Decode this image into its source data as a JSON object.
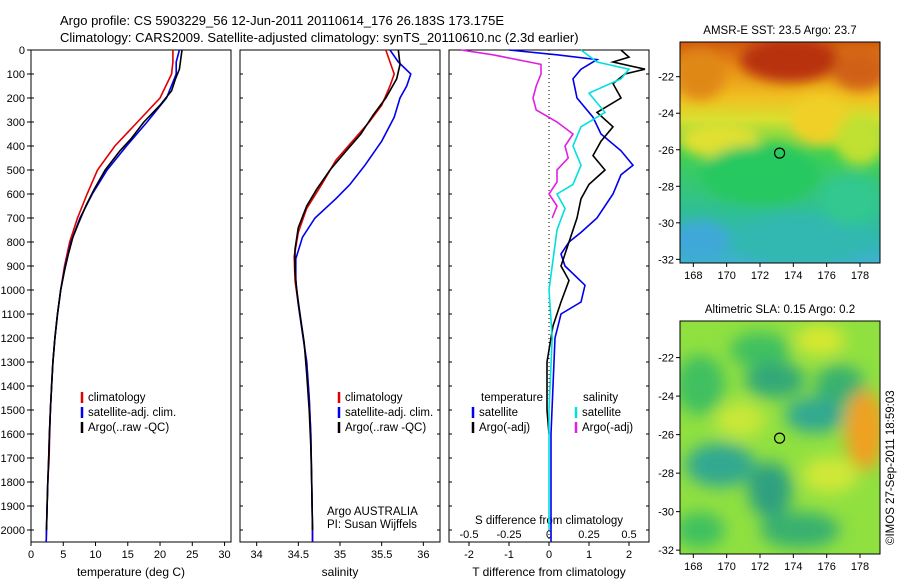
{
  "header": {
    "line1": "Argo profile: CS 5903229_56 12-Jun-2011 20110614_176 26.183S 173.175E",
    "line2": "Climatology: CARS2009. Satellite-adjusted climatology: synTS_20110610.nc (2.3d earlier)"
  },
  "footer": {
    "credit": "©IMOS 27-Sep-2011 18:59:03"
  },
  "colors": {
    "climatology": "#e00000",
    "satellite": "#0000ee",
    "argo": "#000000",
    "salinity_satellite": "#00e0e0",
    "salinity_argo": "#e020e0"
  },
  "chart_data": [
    {
      "id": "temperature",
      "type": "line",
      "xlabel": "temperature (deg C)",
      "ylabel": "",
      "xlim": [
        0,
        31
      ],
      "ylim": [
        2050,
        0
      ],
      "xticks": [
        0,
        5,
        10,
        15,
        20,
        25,
        30
      ],
      "yticks": [
        0,
        100,
        200,
        300,
        400,
        500,
        600,
        700,
        800,
        900,
        1000,
        1100,
        1200,
        1300,
        1400,
        1500,
        1600,
        1700,
        1800,
        1900,
        2000
      ],
      "legend": {
        "entries": [
          "climatology",
          "satellite-adj. clim.",
          "Argo(..raw -QC)"
        ],
        "placement": "lower-center"
      },
      "series": [
        {
          "name": "climatology",
          "color_key": "climatology",
          "points": [
            [
              22,
              0
            ],
            [
              22,
              50
            ],
            [
              21.8,
              100
            ],
            [
              20,
              200
            ],
            [
              16.5,
              300
            ],
            [
              13,
              400
            ],
            [
              10.3,
              500
            ],
            [
              8.7,
              600
            ],
            [
              7.2,
              700
            ],
            [
              6,
              800
            ],
            [
              5.2,
              900
            ],
            [
              4.6,
              1000
            ],
            [
              4.1,
              1100
            ],
            [
              3.7,
              1200
            ],
            [
              3.4,
              1300
            ],
            [
              3.2,
              1400
            ],
            [
              3,
              1500
            ],
            [
              2.9,
              1600
            ],
            [
              2.8,
              1700
            ],
            [
              2.6,
              1800
            ],
            [
              2.5,
              1900
            ],
            [
              2.4,
              2000
            ],
            [
              2.35,
              2050
            ]
          ]
        },
        {
          "name": "satellite-adj. clim.",
          "color_key": "satellite",
          "points": [
            [
              23,
              0
            ],
            [
              22.5,
              50
            ],
            [
              22.5,
              100
            ],
            [
              21,
              200
            ],
            [
              18,
              300
            ],
            [
              14.8,
              400
            ],
            [
              11.8,
              500
            ],
            [
              9.5,
              600
            ],
            [
              7.6,
              700
            ],
            [
              6.2,
              800
            ],
            [
              5.3,
              900
            ],
            [
              4.6,
              1000
            ],
            [
              4.1,
              1100
            ],
            [
              3.7,
              1200
            ],
            [
              3.4,
              1300
            ],
            [
              3.2,
              1400
            ],
            [
              3,
              1500
            ],
            [
              2.85,
              1600
            ],
            [
              2.75,
              1700
            ],
            [
              2.6,
              1800
            ],
            [
              2.5,
              1900
            ],
            [
              2.4,
              2000
            ],
            [
              2.35,
              2050
            ]
          ]
        },
        {
          "name": "Argo(..raw -QC)",
          "color_key": "argo",
          "points": [
            [
              23.4,
              0
            ],
            [
              23.2,
              40
            ],
            [
              23,
              80
            ],
            [
              22.4,
              120
            ],
            [
              21.8,
              170
            ],
            [
              20,
              230
            ],
            [
              17.5,
              300
            ],
            [
              15.5,
              370
            ],
            [
              13.8,
              420
            ],
            [
              11.5,
              500
            ],
            [
              9.8,
              580
            ],
            [
              8.5,
              650
            ],
            [
              7.4,
              720
            ],
            [
              6.5,
              780
            ],
            [
              5.8,
              850
            ],
            [
              5.2,
              920
            ],
            [
              4.6,
              1000
            ],
            [
              4.1,
              1100
            ],
            [
              3.7,
              1200
            ],
            [
              3.4,
              1300
            ],
            [
              3.2,
              1400
            ],
            [
              3,
              1500
            ],
            [
              2.85,
              1600
            ],
            [
              2.75,
              1700
            ],
            [
              2.6,
              1800
            ],
            [
              2.5,
              1900
            ],
            [
              2.4,
              2000
            ]
          ]
        }
      ]
    },
    {
      "id": "salinity",
      "type": "line",
      "xlabel": "salinity",
      "ylabel": "",
      "xlim": [
        33.8,
        36.2
      ],
      "ylim": [
        2050,
        0
      ],
      "xticks": [
        34,
        34.5,
        35,
        35.5,
        36
      ],
      "legend": {
        "entries": [
          "climatology",
          "satellite-adj. clim.",
          "Argo(..raw -QC)"
        ],
        "placement": "lower-center"
      },
      "annotation": [
        "Argo AUSTRALIA",
        "PI: Susan Wijffels"
      ],
      "series": [
        {
          "name": "climatology",
          "color_key": "climatology",
          "points": [
            [
              35.55,
              0
            ],
            [
              35.6,
              50
            ],
            [
              35.65,
              100
            ],
            [
              35.6,
              150
            ],
            [
              35.5,
              230
            ],
            [
              35.35,
              300
            ],
            [
              35.15,
              380
            ],
            [
              34.95,
              460
            ],
            [
              34.78,
              560
            ],
            [
              34.6,
              660
            ],
            [
              34.5,
              760
            ],
            [
              34.45,
              860
            ],
            [
              34.46,
              960
            ],
            [
              34.5,
              1060
            ],
            [
              34.55,
              1180
            ],
            [
              34.6,
              1300
            ],
            [
              34.63,
              1450
            ],
            [
              34.65,
              1600
            ],
            [
              34.66,
              1800
            ],
            [
              34.67,
              2000
            ],
            [
              34.67,
              2050
            ]
          ]
        },
        {
          "name": "satellite-adj. clim.",
          "color_key": "satellite",
          "points": [
            [
              35.6,
              0
            ],
            [
              35.7,
              50
            ],
            [
              35.85,
              100
            ],
            [
              35.8,
              150
            ],
            [
              35.72,
              200
            ],
            [
              35.65,
              280
            ],
            [
              35.5,
              380
            ],
            [
              35.3,
              480
            ],
            [
              35.12,
              560
            ],
            [
              34.95,
              620
            ],
            [
              34.7,
              700
            ],
            [
              34.55,
              780
            ],
            [
              34.47,
              870
            ],
            [
              34.47,
              960
            ],
            [
              34.5,
              1060
            ],
            [
              34.55,
              1180
            ],
            [
              34.6,
              1300
            ],
            [
              34.63,
              1450
            ],
            [
              34.65,
              1600
            ],
            [
              34.66,
              1800
            ],
            [
              34.67,
              2000
            ],
            [
              34.67,
              2050
            ]
          ]
        },
        {
          "name": "Argo(..raw -QC)",
          "color_key": "argo",
          "points": [
            [
              35.7,
              0
            ],
            [
              35.72,
              60
            ],
            [
              35.68,
              120
            ],
            [
              35.55,
              200
            ],
            [
              35.4,
              270
            ],
            [
              35.25,
              350
            ],
            [
              35.05,
              430
            ],
            [
              34.88,
              500
            ],
            [
              34.72,
              580
            ],
            [
              34.6,
              650
            ],
            [
              34.5,
              740
            ],
            [
              34.46,
              830
            ],
            [
              34.46,
              920
            ],
            [
              34.48,
              1000
            ],
            [
              34.52,
              1100
            ],
            [
              34.57,
              1220
            ],
            [
              34.6,
              1350
            ],
            [
              34.63,
              1500
            ],
            [
              34.65,
              1650
            ],
            [
              34.66,
              1800
            ],
            [
              34.67,
              2000
            ]
          ]
        }
      ]
    },
    {
      "id": "difference",
      "type": "line",
      "xlabel": "T difference from climatology",
      "xlabel2": "S difference from climatology",
      "ylabel": "",
      "xlim": [
        -2.5,
        2.5
      ],
      "ylim": [
        2050,
        0
      ],
      "xticks": [
        -2,
        -1,
        0,
        1,
        2
      ],
      "xticks_s": [
        -0.5,
        -0.25,
        0,
        0.25,
        0.5
      ],
      "legend_temperature": {
        "title": "temperature",
        "entries": [
          "satellite",
          "Argo(-adj)"
        ]
      },
      "legend_salinity": {
        "title": "salinity",
        "entries": [
          "satellite",
          "Argo(-adj)"
        ]
      },
      "series": [
        {
          "name": "temperature satellite",
          "color_key": "satellite",
          "points": [
            [
              -1,
              0
            ],
            [
              0.2,
              20
            ],
            [
              1.2,
              40
            ],
            [
              0.8,
              80
            ],
            [
              0.6,
              120
            ],
            [
              0.7,
              200
            ],
            [
              1.1,
              280
            ],
            [
              1.3,
              350
            ],
            [
              1.8,
              420
            ],
            [
              2.1,
              480
            ],
            [
              1.8,
              520
            ],
            [
              1.6,
              600
            ],
            [
              1.2,
              700
            ],
            [
              0.8,
              760
            ],
            [
              0.5,
              800
            ],
            [
              0.3,
              850
            ],
            [
              0.4,
              900
            ],
            [
              0.9,
              980
            ],
            [
              0.8,
              1050
            ],
            [
              0.3,
              1100
            ],
            [
              0.15,
              1200
            ],
            [
              0.1,
              1400
            ],
            [
              0.05,
              1600
            ],
            [
              0.05,
              2050
            ]
          ]
        },
        {
          "name": "temperature Argo(-adj)",
          "color_key": "argo",
          "points": [
            [
              1.8,
              0
            ],
            [
              2,
              30
            ],
            [
              1.6,
              50
            ],
            [
              2.4,
              80
            ],
            [
              1.9,
              100
            ],
            [
              1.6,
              140
            ],
            [
              1.8,
              200
            ],
            [
              1.2,
              260
            ],
            [
              1.6,
              320
            ],
            [
              1.3,
              380
            ],
            [
              1.1,
              440
            ],
            [
              1.4,
              500
            ],
            [
              1,
              560
            ],
            [
              0.8,
              620
            ],
            [
              0.7,
              700
            ],
            [
              0.5,
              800
            ],
            [
              0.3,
              900
            ],
            [
              0.5,
              960
            ],
            [
              0.3,
              1050
            ],
            [
              0.1,
              1150
            ],
            [
              -0.05,
              1300
            ],
            [
              -0.05,
              1500
            ],
            [
              0,
              1600
            ]
          ]
        },
        {
          "name": "salinity satellite",
          "color_key": "salinity_satellite",
          "points": [
            [
              0.2,
              0
            ],
            [
              0.3,
              50
            ],
            [
              0.5,
              80
            ],
            [
              0.45,
              120
            ],
            [
              0.25,
              180
            ],
            [
              0.35,
              260
            ],
            [
              0.2,
              320
            ],
            [
              0.15,
              400
            ],
            [
              0.2,
              480
            ],
            [
              0.15,
              560
            ],
            [
              0.05,
              600
            ],
            [
              0.1,
              660
            ],
            [
              0.05,
              750
            ],
            [
              0.02,
              900
            ],
            [
              0,
              1000
            ],
            [
              0.02,
              1200
            ],
            [
              0,
              1500
            ],
            [
              0,
              2000
            ]
          ]
        },
        {
          "name": "salinity Argo(-adj)",
          "color_key": "salinity_argo",
          "points": [
            [
              -0.55,
              0
            ],
            [
              -0.35,
              20
            ],
            [
              -0.05,
              60
            ],
            [
              -0.05,
              100
            ],
            [
              -0.08,
              150
            ],
            [
              -0.1,
              200
            ],
            [
              -0.08,
              250
            ],
            [
              0.05,
              300
            ],
            [
              0.15,
              350
            ],
            [
              0.1,
              400
            ],
            [
              0.12,
              450
            ],
            [
              0.05,
              500
            ],
            [
              0.05,
              550
            ],
            [
              0,
              600
            ],
            [
              0.05,
              650
            ],
            [
              0.02,
              700
            ]
          ]
        }
      ]
    },
    {
      "id": "sst_map",
      "type": "heatmap",
      "title": "AMSR-E SST: 23.5 Argo: 23.7",
      "xticks": [
        168,
        170,
        172,
        174,
        176,
        178
      ],
      "yticks": [
        -22,
        -24,
        -26,
        -28,
        -30,
        -32
      ],
      "xlim": [
        167.2,
        179.2
      ],
      "ylim": [
        -32.2,
        -20.1
      ],
      "marker": {
        "lon": 173.175,
        "lat": -26.183
      }
    },
    {
      "id": "sla_map",
      "type": "heatmap",
      "title": "Altimetric SLA: 0.15 Argo: 0.2",
      "xticks": [
        168,
        170,
        172,
        174,
        176,
        178
      ],
      "yticks": [
        -22,
        -24,
        -26,
        -28,
        -30,
        -32
      ],
      "xlim": [
        167.2,
        179.2
      ],
      "ylim": [
        -32.2,
        -20.1
      ],
      "marker": {
        "lon": 173.175,
        "lat": -26.183
      }
    }
  ]
}
